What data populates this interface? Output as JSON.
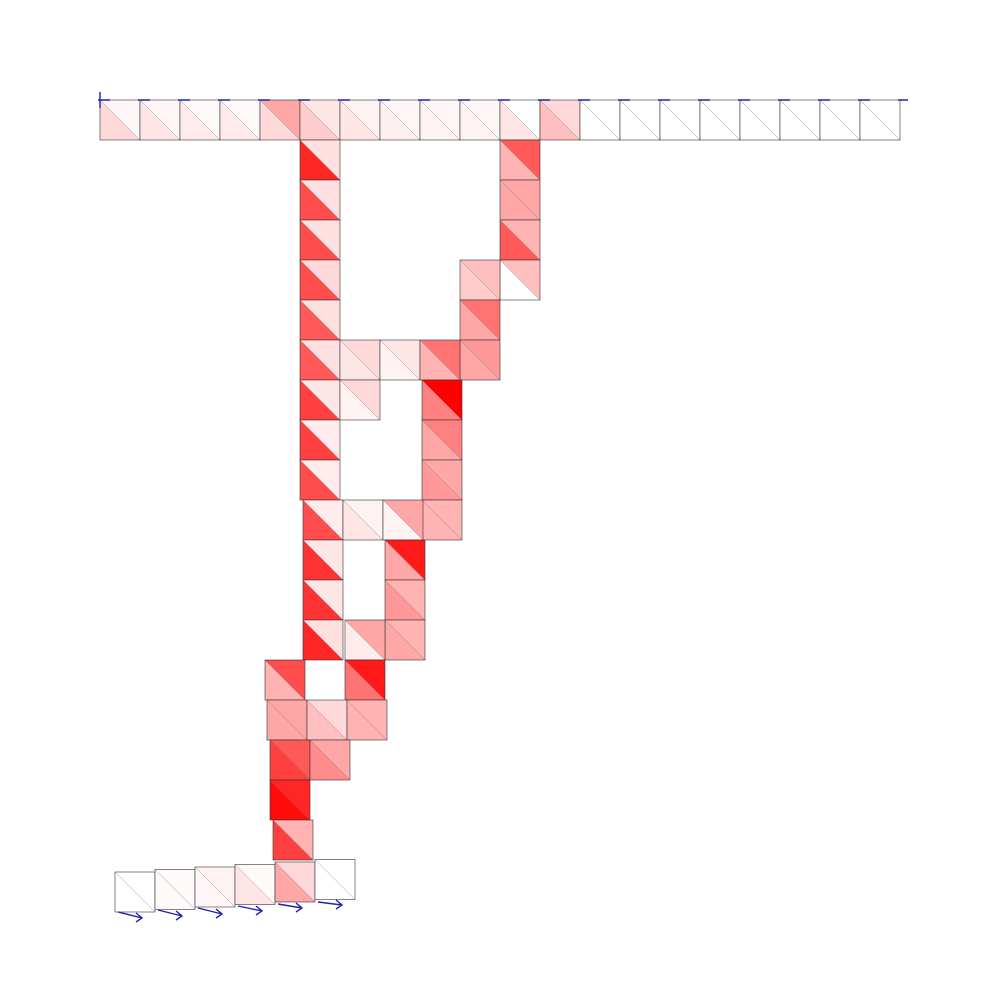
{
  "elements": [
    [
      0.15,
      0.03
    ],
    [
      0.1,
      0.03
    ],
    [
      0.08,
      0.02
    ],
    [
      0.08,
      0.02
    ],
    [
      0.15,
      0.35
    ],
    [
      0.2,
      0.1
    ],
    [
      0.1,
      0.05
    ],
    [
      0.06,
      0.03
    ],
    [
      0.05,
      0.03
    ],
    [
      0.05,
      0.03
    ],
    [
      0.1,
      0
    ],
    [
      0.25,
      0.15
    ],
    [
      0,
      0
    ],
    [
      0,
      0
    ],
    [
      0,
      0
    ],
    [
      0,
      0
    ],
    [
      0,
      0
    ],
    [
      0,
      0
    ],
    [
      0,
      0
    ],
    [
      0,
      0
    ],
    [
      0.85,
      0.12
    ],
    [
      0.7,
      0.12
    ],
    [
      0.7,
      0.12
    ],
    [
      0.7,
      0.15
    ],
    [
      0.65,
      0.12
    ],
    [
      0.65,
      0.12
    ],
    [
      0.75,
      0.1
    ],
    [
      0.75,
      0.08
    ],
    [
      0.7,
      0.08
    ],
    [
      0.7,
      0.08
    ],
    [
      0.8,
      0.1
    ],
    [
      0.8,
      0.1
    ],
    [
      0.85,
      0.12
    ],
    [
      0.3,
      0.65
    ],
    [
      0.35,
      0.35
    ],
    [
      0.65,
      0.3
    ],
    [
      0,
      0.25
    ],
    [
      0.2,
      0.25
    ],
    [
      0.35,
      0.55
    ],
    [
      0.35,
      0.4
    ],
    [
      0.1,
      0.15
    ],
    [
      0.05,
      0.1
    ],
    [
      0.3,
      0.55
    ],
    [
      0.05,
      0.15
    ],
    [
      0.5,
      1
    ],
    [
      0.35,
      0.5
    ],
    [
      0.4,
      0.35
    ],
    [
      0.3,
      0.3
    ],
    [
      0.1,
      0.05
    ],
    [
      0.05,
      0.35
    ],
    [
      0.35,
      0.9
    ],
    [
      0.4,
      0.3
    ],
    [
      0.35,
      0.3
    ],
    [
      0.08,
      0.35
    ],
    [
      0.3,
      0.7
    ],
    [
      0.55,
      0.9
    ],
    [
      0.35,
      0.35
    ],
    [
      0.25,
      0.15
    ],
    [
      0.3,
      0.3
    ],
    [
      0.75,
      0.65
    ],
    [
      0.45,
      0.35
    ],
    [
      0.95,
      0.85
    ],
    [
      0.75,
      0.3
    ],
    [
      0,
      0
    ],
    [
      0.02,
      0.02
    ],
    [
      0.03,
      0.05
    ],
    [
      0.1,
      0.02
    ],
    [
      0.35,
      0.15
    ],
    [
      0,
      0
    ]
  ]
}
